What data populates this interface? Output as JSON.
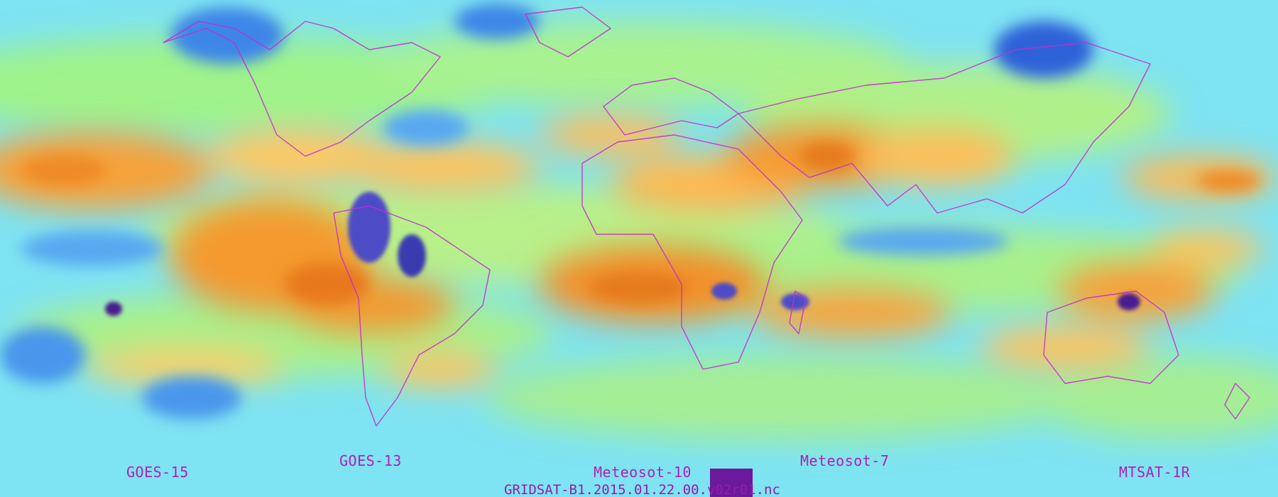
{
  "map": {
    "type": "satellite water vapor mosaic",
    "colors": {
      "dry": "#f08a1a",
      "warm": "#ffc15a",
      "mid": "#8ff28a",
      "moist": "#6fd8f5",
      "wet": "#2f6fe0",
      "cold_cloud": "#3a1a8a",
      "coastline": "#c22fd0",
      "label": "#b01fb8"
    },
    "satellites": [
      {
        "label": "GOES-15"
      },
      {
        "label": "GOES-13"
      },
      {
        "label": "Meteosot-10"
      },
      {
        "label": "Meteosot-7"
      },
      {
        "label": "MTSAT-1R"
      }
    ],
    "file_label": "GRIDSAT-B1.2015.01.22.00.v02r01.nc"
  }
}
